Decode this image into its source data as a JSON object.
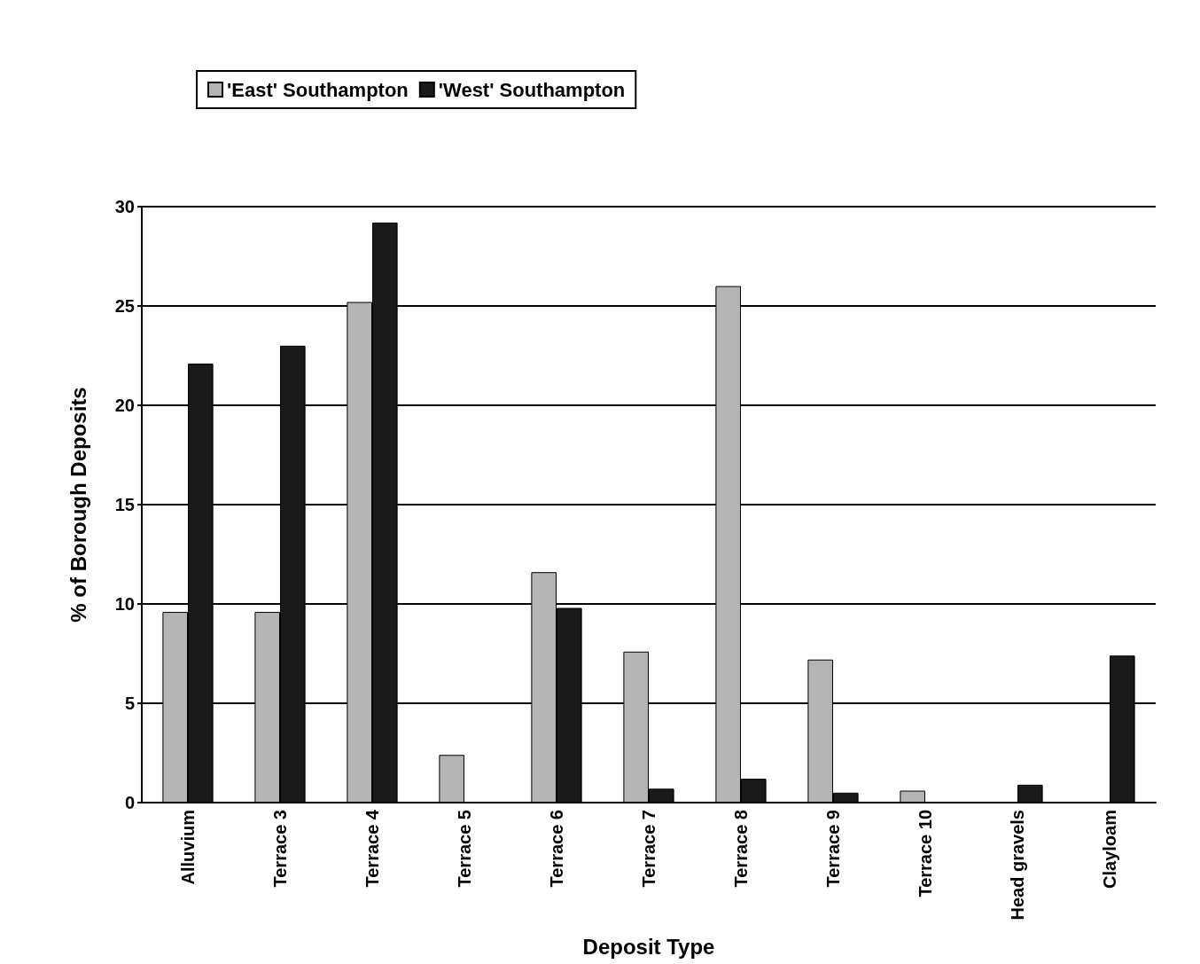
{
  "chart_data": {
    "type": "bar",
    "xlabel": "Deposit Type",
    "ylabel": "% of Borough Deposits",
    "categories": [
      "Alluvium",
      "Terrace 3",
      "Terrace 4",
      "Terrace 5",
      "Terrace 6",
      "Terrace 7",
      "Terrace 8",
      "Terrace 9",
      "Terrace 10",
      "Head gravels",
      "Clayloam"
    ],
    "series": [
      {
        "name": "'East' Southampton",
        "color": "#b4b4b4",
        "values": [
          9.6,
          9.6,
          25.2,
          2.4,
          11.6,
          7.6,
          26.0,
          7.2,
          0.6,
          0,
          0
        ]
      },
      {
        "name": "'West' Southampton",
        "color": "#1a1a1a",
        "values": [
          22.1,
          23.0,
          29.2,
          0,
          9.8,
          0.7,
          1.2,
          0.5,
          0,
          0.9,
          7.4
        ]
      }
    ],
    "ylim": [
      0,
      30
    ],
    "yticks": [
      0,
      5,
      10,
      15,
      20,
      25,
      30
    ],
    "grid": "y",
    "legend": "top left"
  }
}
